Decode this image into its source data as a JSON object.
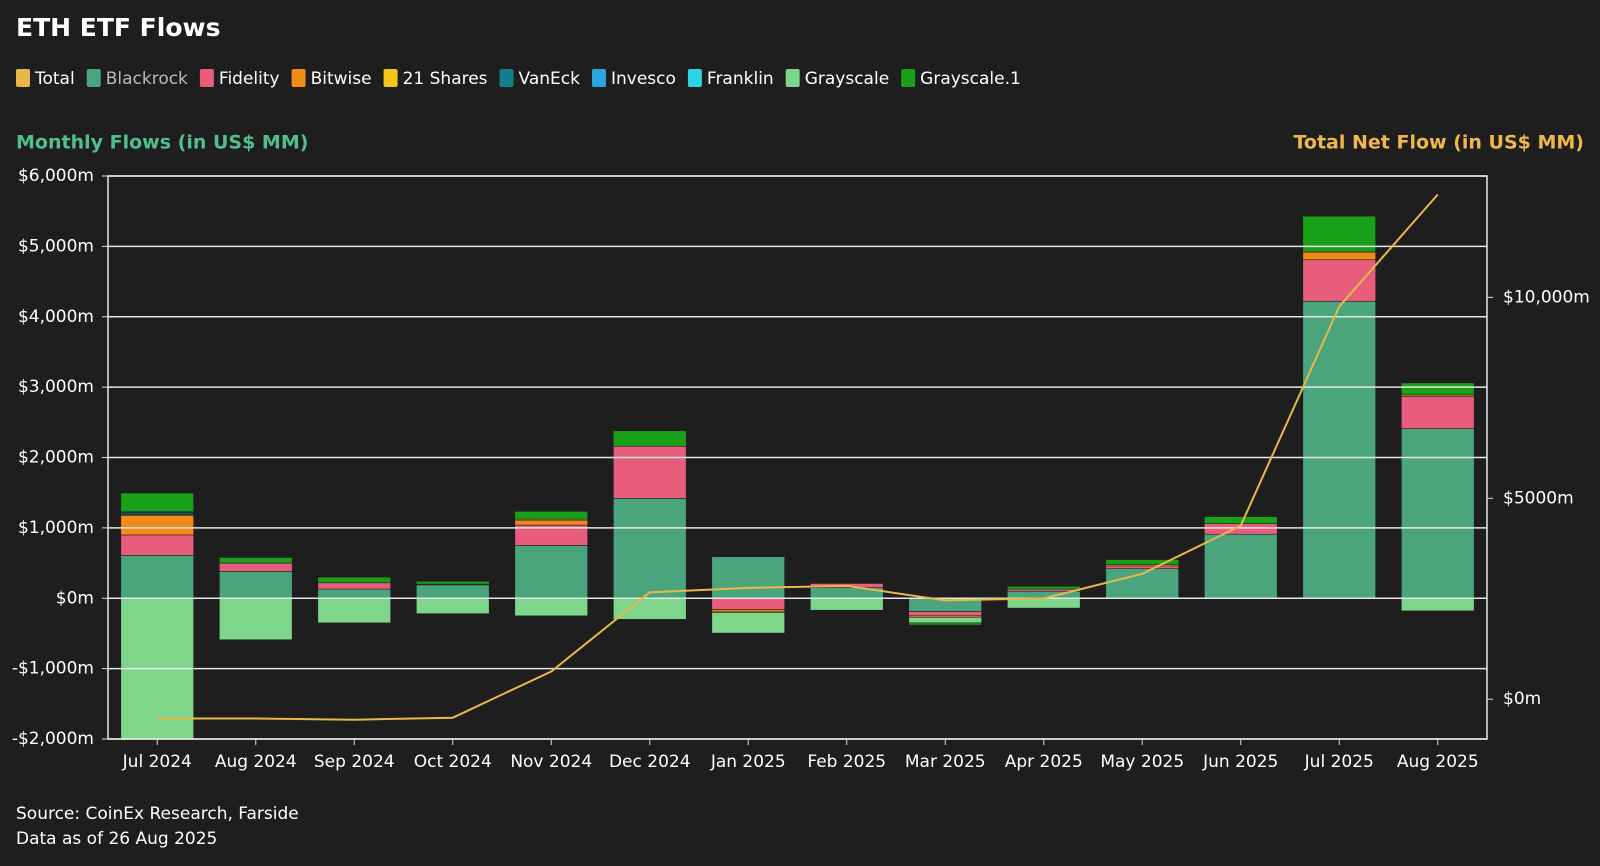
{
  "chart_data": {
    "type": "bar",
    "title": "ETH ETF Flows",
    "ylabel": "Monthly Flows (in US$ MM)",
    "y2label": "Total Net Flow (in US$ MM)",
    "notes": [
      "Source: CoinEx Research, Farside",
      "Data as of 26 Aug 2025"
    ],
    "categories": [
      "Jul 2024",
      "Aug 2024",
      "Sep 2024",
      "Oct 2024",
      "Nov 2024",
      "Dec 2024",
      "Jan 2025",
      "Feb 2025",
      "Mar 2025",
      "Apr 2025",
      "May 2025",
      "Jun 2025",
      "Jul 2025",
      "Aug 2025"
    ],
    "series": [
      {
        "name": "Total",
        "color": "#e8b84a",
        "axis": "y2",
        "type": "line",
        "values": [
          -480,
          -480,
          -510,
          -460,
          690,
          2660,
          2770,
          2820,
          2460,
          2510,
          3120,
          4320,
          9770,
          12560
        ]
      },
      {
        "name": "Blackrock",
        "color": "#4aa57c",
        "values": [
          610,
          380,
          130,
          190,
          750,
          1420,
          590,
          150,
          -190,
          100,
          420,
          910,
          4220,
          2410
        ]
      },
      {
        "name": "Fidelity",
        "color": "#e85d7c",
        "values": [
          290,
          120,
          90,
          10,
          290,
          740,
          -160,
          60,
          -60,
          30,
          40,
          150,
          590,
          460
        ]
      },
      {
        "name": "Bitwise",
        "color": "#f28a18",
        "values": [
          275,
          0,
          0,
          0,
          70,
          0,
          -25,
          0,
          -20,
          0,
          0,
          0,
          100,
          20
        ]
      },
      {
        "name": "21 Shares",
        "color": "#f5c518",
        "values": [
          15,
          0,
          0,
          0,
          15,
          0,
          -20,
          0,
          0,
          0,
          20,
          0,
          20,
          0
        ]
      },
      {
        "name": "VanEck",
        "color": "#147d8c",
        "values": [
          20,
          0,
          0,
          0,
          0,
          0,
          0,
          0,
          0,
          0,
          0,
          0,
          0,
          0
        ]
      },
      {
        "name": "Invesco",
        "color": "#29a8e0",
        "values": [
          10,
          0,
          0,
          0,
          0,
          0,
          0,
          0,
          0,
          0,
          0,
          0,
          0,
          0
        ]
      },
      {
        "name": "Franklin",
        "color": "#2ad4e0",
        "values": [
          15,
          0,
          0,
          0,
          0,
          0,
          0,
          0,
          0,
          0,
          0,
          0,
          0,
          0
        ]
      },
      {
        "name": "Grayscale",
        "color": "#7dd68a",
        "values": [
          -2000,
          -590,
          -350,
          -220,
          -250,
          -300,
          -290,
          -170,
          -80,
          -140,
          0,
          0,
          0,
          -180
        ]
      },
      {
        "name": "Grayscale.1",
        "color": "#18a018",
        "values": [
          260,
          80,
          80,
          40,
          110,
          220,
          0,
          0,
          -30,
          40,
          70,
          100,
          500,
          170
        ]
      }
    ],
    "ylim": [
      -2000,
      6000
    ],
    "yticks": [
      {
        "value": -2000,
        "label": "-$2,000m"
      },
      {
        "value": -1000,
        "label": "-$1,000m"
      },
      {
        "value": 0,
        "label": "$0m"
      },
      {
        "value": 1000,
        "label": "$1,000m"
      },
      {
        "value": 2000,
        "label": "$2,000m"
      },
      {
        "value": 3000,
        "label": "$3,000m"
      },
      {
        "value": 4000,
        "label": "$4,000m"
      },
      {
        "value": 5000,
        "label": "$5,000m"
      },
      {
        "value": 6000,
        "label": "$6,000m"
      }
    ],
    "y2lim": [
      -990,
      13020
    ],
    "y2ticks": [
      {
        "value": 0,
        "label": "$0m"
      },
      {
        "value": 5000,
        "label": "$5000m"
      },
      {
        "value": 10000,
        "label": "$10,000m"
      }
    ],
    "grid": true
  }
}
